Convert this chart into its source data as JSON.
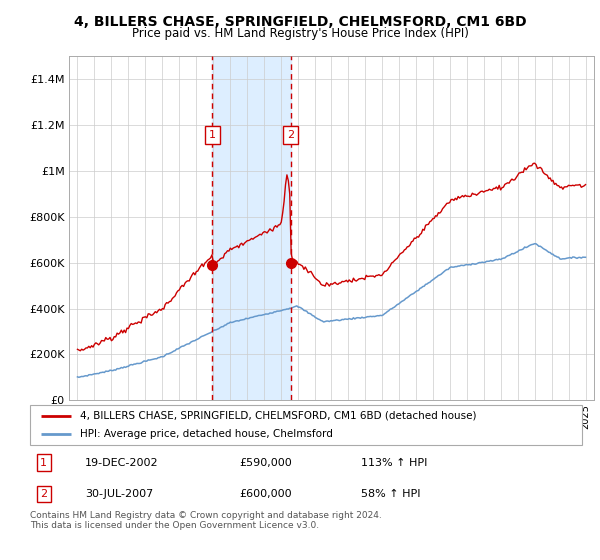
{
  "title": "4, BILLERS CHASE, SPRINGFIELD, CHELMSFORD, CM1 6BD",
  "subtitle": "Price paid vs. HM Land Registry's House Price Index (HPI)",
  "legend_line1": "4, BILLERS CHASE, SPRINGFIELD, CHELMSFORD, CM1 6BD (detached house)",
  "legend_line2": "HPI: Average price, detached house, Chelmsford",
  "footer": "Contains HM Land Registry data © Crown copyright and database right 2024.\nThis data is licensed under the Open Government Licence v3.0.",
  "sale1_date": "19-DEC-2002",
  "sale1_price": "£590,000",
  "sale1_hpi": "113% ↑ HPI",
  "sale2_date": "30-JUL-2007",
  "sale2_price": "£600,000",
  "sale2_hpi": "58% ↑ HPI",
  "red_color": "#cc0000",
  "blue_color": "#6699cc",
  "shade_color": "#ddeeff",
  "yticks": [
    0,
    200000,
    400000,
    600000,
    800000,
    1000000,
    1200000,
    1400000
  ],
  "ytick_labels": [
    "£0",
    "£200K",
    "£400K",
    "£600K",
    "£800K",
    "£1M",
    "£1.2M",
    "£1.4M"
  ],
  "sale1_x": 2002.97,
  "sale2_x": 2007.58,
  "sale1_y": 590000,
  "sale2_y": 600000,
  "xmin": 1994.5,
  "xmax": 2025.5,
  "ymin": 0,
  "ymax": 1500000
}
